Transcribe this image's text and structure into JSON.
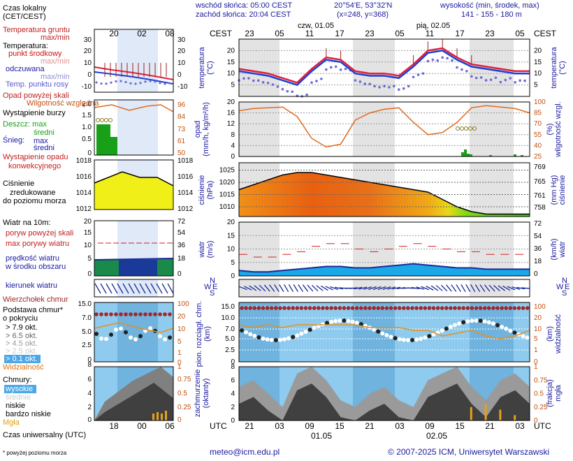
{
  "header": {
    "sunrise": "wschód słońca: 05:00 CEST",
    "sunset": "zachód słońca: 20:04 CEST",
    "coords": "20°54'E, 53°32'N",
    "grid": "(x=248, y=368)",
    "height_title": "wysokość (min, środek, max)",
    "height_values": "141 - 155 - 180 m",
    "day1": "czw, 01.05",
    "day2": "pią, 02.05",
    "tz_left": "CEST",
    "tz_right": "CEST",
    "top_hours": [
      "23",
      "05",
      "11",
      "17",
      "23",
      "05",
      "11",
      "17",
      "23",
      "05"
    ],
    "bottom_hours": [
      "21",
      "03",
      "09",
      "15",
      "21",
      "03",
      "09",
      "15",
      "21",
      "03"
    ],
    "utc_left": "UTC",
    "utc_right": "UTC",
    "bottom_date1": "01.05",
    "bottom_date2": "02.05"
  },
  "legend": {
    "local_time": "Czas lokalny",
    "local_time_sub": "(CET/CEST)",
    "local_hours": [
      "20",
      "02",
      "08"
    ],
    "utc_hours": [
      "18",
      "00",
      "06"
    ],
    "soil_temp": "Temperatura gruntu",
    "soil_temp_sub": "max/min",
    "temperature": "Temperatura:",
    "mid_point": "punkt środkowy",
    "max_min": "max/min",
    "perceived": "odczuwana",
    "perceived_sub": "max/min",
    "dew_point": "Temp. punktu rosy",
    "precip_above": "Opad powyżej skali",
    "humidity": "Wilgotność względna",
    "storm": "Wystąpienie burzy",
    "rain": "Deszcz: max",
    "rain_mid": "średni",
    "snow": "Śnieg:",
    "snow_max": "max",
    "snow_mid": "średni",
    "convective": "Wystąpienie opadu",
    "convective_sub": "konwekcyjnego",
    "pressure": "Ciśnienie",
    "pressure_sub1": "zredukowane",
    "pressure_sub2": "do poziomu morza",
    "wind_10m": "Wiatr na 10m:",
    "gust_above": "poryw powyżej skali",
    "gust_max": "max porywy wiatru",
    "wind_speed": "prędkość wiatru",
    "wind_speed_sub": "w środku obszaru",
    "wind_dir": "kierunek wiatru",
    "cloud_top": "Wierzchołek chmur",
    "cloud_base": "Podstawa chmur*",
    "cloud_base_sub": "o pokryciu",
    "okt_79": "> 7.9 okt.",
    "okt_65": "> 6.5 okt.",
    "okt_45": "> 4.5 okt.",
    "okt_25": "> 2.5 okt.",
    "okt_01": "> 0.1 okt.",
    "visibility": "Widzialność",
    "clouds": "Chmury:",
    "clouds_high": "wysokie",
    "clouds_mid": "średnie",
    "clouds_low": "niskie",
    "clouds_vlow": "bardzo niskie",
    "fog": "Mgła",
    "utc_time": "Czas uniwersalny (UTC)",
    "footnote": "* powyżej poziomu morza"
  },
  "axes": {
    "temp_left": "temperatura\n(°C)",
    "temp_right": "temperatura\n(°C)",
    "temp_ticks": [
      "20",
      "15",
      "10",
      "5"
    ],
    "legend_temp_ticks": [
      "30",
      "20",
      "10",
      "0",
      "-10"
    ],
    "precip_left": "opad\n(mm/h, kg/m²/h)",
    "precip_ticks": [
      "20",
      "16",
      "12",
      "8",
      "4",
      "0"
    ],
    "humid_right": "(%)\nwilgotność wzgl.",
    "humid_ticks": [
      "100",
      "85",
      "70",
      "55",
      "40",
      "25"
    ],
    "legend_precip_ticks": [
      "2.0",
      "1.5",
      "1.0",
      "0.5",
      "0"
    ],
    "legend_humid_ticks": [
      "96",
      "84",
      "73",
      "61",
      "50"
    ],
    "pres_left": "ciśnienie\n(hPa)",
    "pres_ticks": [
      "1025",
      "1020",
      "1015",
      "1010"
    ],
    "pres_right": "(mm Hg)\nciśnienie",
    "pres_mm_ticks": [
      "769",
      "765",
      "761",
      "758"
    ],
    "legend_pres_ticks": [
      "1018",
      "1016",
      "1014",
      "1012"
    ],
    "wind_left": "wiatr\n(m/s)",
    "wind_ticks": [
      "20",
      "15",
      "10",
      "5",
      "0"
    ],
    "wind_right": "(km/h)\nwiatr",
    "wind_kmh_ticks": [
      "72",
      "54",
      "36",
      "18",
      "0"
    ],
    "dir_n": "N",
    "dir_w": "W",
    "dir_e": "E",
    "dir_s": "S",
    "cloud_left": "pion. rozciągł. chm.\n(km)",
    "cloud_ticks": [
      "15.0",
      "10.0",
      "7.0",
      "5.0",
      "2.5",
      "0"
    ],
    "vis_right": "(km)\nwidzialność",
    "vis_ticks": [
      "100",
      "20",
      "10",
      "5",
      "1",
      "0"
    ],
    "cover_left": "zachmurzenie\n(oktanty)",
    "cover_ticks": [
      "8",
      "6",
      "4",
      "2",
      "0"
    ],
    "fog_right": "(frakcja)\nmgła",
    "fog_ticks": [
      "1",
      "0.75",
      "0.5",
      "0.25",
      "0"
    ]
  },
  "footer": {
    "email": "meteo@icm.edu.pl",
    "copyright": "© 2007-2025 ICM, Uniwersytet Warszawski"
  },
  "chart_data": {
    "type": "line",
    "hours_utc": [
      18,
      21,
      0,
      3,
      6,
      9,
      12,
      15,
      18,
      21,
      0,
      3,
      6,
      9,
      12,
      15,
      18,
      21,
      0,
      3,
      6
    ],
    "temperature_c": [
      12,
      11,
      10,
      8,
      6,
      12,
      17,
      16,
      11,
      10,
      10,
      9,
      14,
      20,
      21,
      17,
      14,
      13,
      12,
      11,
      11
    ],
    "humidity_pct": [
      88,
      91,
      92,
      93,
      80,
      50,
      38,
      42,
      75,
      85,
      90,
      92,
      72,
      55,
      58,
      72,
      92,
      95,
      93,
      91,
      85
    ],
    "pressure_hpa": [
      1017,
      1019,
      1021,
      1023,
      1024,
      1024,
      1023,
      1022,
      1021,
      1020,
      1019,
      1018,
      1017,
      1016,
      1013,
      1010,
      1008,
      1007,
      1007,
      1007,
      1007
    ],
    "wind_ms": [
      2,
      1.5,
      1.5,
      2,
      2.5,
      3,
      3.5,
      3.5,
      3,
      3,
      3.5,
      4,
      4.5,
      4,
      3.5,
      3,
      3,
      2.5,
      2.5,
      2.5,
      2.5
    ],
    "gust_ms": [
      8,
      7,
      7,
      8,
      9,
      11,
      12,
      12,
      10,
      9,
      10,
      11,
      12,
      11,
      10,
      9,
      9,
      8,
      8,
      8,
      8
    ],
    "visibility_km": [
      7,
      6,
      7,
      6,
      7,
      7,
      7,
      7,
      7,
      6,
      6,
      6,
      5,
      5,
      3,
      4,
      5,
      3,
      2,
      3,
      5
    ],
    "fog_fraction": [
      0,
      0,
      0,
      0,
      0,
      0,
      0,
      0,
      0,
      0,
      0,
      0,
      0,
      0,
      0,
      0,
      0.25,
      0.3,
      0.2,
      0.1,
      0
    ]
  }
}
